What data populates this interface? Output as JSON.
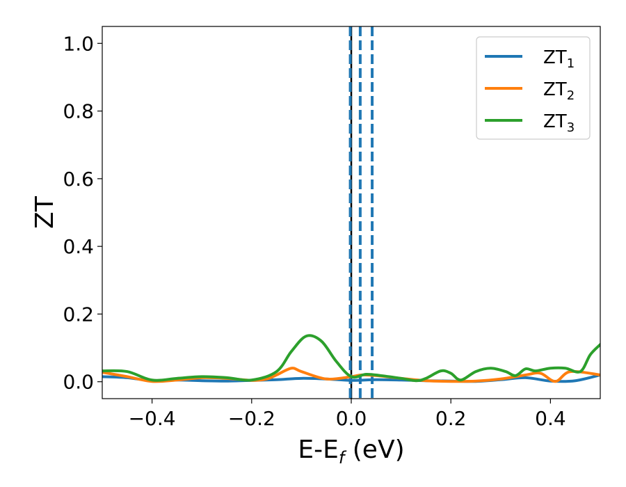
{
  "chart_data": {
    "type": "line",
    "xlabel": "E-E",
    "xlabel_sub": "f",
    "xlabel_unit": " (eV)",
    "ylabel": "ZT",
    "xlim": [
      -0.5,
      0.5
    ],
    "ylim": [
      -0.05,
      1.05
    ],
    "x_ticks": [
      {
        "value": -0.4,
        "label": "−0.4"
      },
      {
        "value": -0.2,
        "label": "−0.2"
      },
      {
        "value": 0.0,
        "label": "0.0"
      },
      {
        "value": 0.2,
        "label": "0.2"
      },
      {
        "value": 0.4,
        "label": "0.4"
      }
    ],
    "y_ticks": [
      {
        "value": 0.0,
        "label": "0.0"
      },
      {
        "value": 0.2,
        "label": "0.2"
      },
      {
        "value": 0.4,
        "label": "0.4"
      },
      {
        "value": 0.6,
        "label": "0.6"
      },
      {
        "value": 0.8,
        "label": "0.8"
      },
      {
        "value": 1.0,
        "label": "1.0"
      }
    ],
    "grid": false,
    "legend_position": "top-right",
    "series": [
      {
        "name": "ZT",
        "name_sub": "1",
        "color": "#1f77b4",
        "x": [
          -0.5,
          -0.45,
          -0.4,
          -0.35,
          -0.3,
          -0.25,
          -0.2,
          -0.15,
          -0.1,
          -0.05,
          0.0,
          0.05,
          0.1,
          0.15,
          0.2,
          0.25,
          0.3,
          0.35,
          0.4,
          0.45,
          0.5
        ],
        "y": [
          0.015,
          0.012,
          0.003,
          0.005,
          0.003,
          0.002,
          0.004,
          0.006,
          0.01,
          0.008,
          0.004,
          0.006,
          0.005,
          0.003,
          0.002,
          0.001,
          0.006,
          0.012,
          0.002,
          0.003,
          0.02
        ]
      },
      {
        "name": "ZT",
        "name_sub": "2",
        "color": "#ff7f0e",
        "x": [
          -0.5,
          -0.45,
          -0.4,
          -0.35,
          -0.3,
          -0.25,
          -0.2,
          -0.17,
          -0.15,
          -0.12,
          -0.1,
          -0.05,
          0.0,
          0.02,
          0.05,
          0.1,
          0.15,
          0.2,
          0.25,
          0.3,
          0.35,
          0.38,
          0.41,
          0.44,
          0.5
        ],
        "y": [
          0.028,
          0.015,
          0.001,
          0.005,
          0.012,
          0.01,
          0.004,
          0.008,
          0.02,
          0.04,
          0.03,
          0.008,
          0.015,
          0.02,
          0.018,
          0.01,
          0.003,
          0.001,
          0.002,
          0.008,
          0.02,
          0.025,
          0.001,
          0.03,
          0.02
        ]
      },
      {
        "name": "ZT",
        "name_sub": "3",
        "color": "#2ca02c",
        "x": [
          -0.5,
          -0.45,
          -0.4,
          -0.35,
          -0.3,
          -0.25,
          -0.2,
          -0.15,
          -0.12,
          -0.09,
          -0.06,
          -0.03,
          0.0,
          0.03,
          0.06,
          0.1,
          0.13,
          0.15,
          0.18,
          0.2,
          0.22,
          0.25,
          0.28,
          0.31,
          0.33,
          0.35,
          0.37,
          0.4,
          0.43,
          0.46,
          0.48,
          0.5
        ],
        "y": [
          0.032,
          0.03,
          0.005,
          0.01,
          0.015,
          0.012,
          0.005,
          0.03,
          0.09,
          0.135,
          0.12,
          0.06,
          0.015,
          0.022,
          0.018,
          0.01,
          0.003,
          0.01,
          0.032,
          0.025,
          0.005,
          0.03,
          0.04,
          0.03,
          0.018,
          0.038,
          0.032,
          0.04,
          0.04,
          0.03,
          0.08,
          0.11
        ]
      }
    ],
    "vertical_lines": [
      {
        "x": 0.0,
        "color": "#000000",
        "style": "solid"
      },
      {
        "x": -0.002,
        "color": "#1f77b4",
        "style": "dashed"
      },
      {
        "x": 0.018,
        "color": "#1f77b4",
        "style": "dashed"
      },
      {
        "x": 0.042,
        "color": "#1f77b4",
        "style": "dashed"
      }
    ]
  }
}
